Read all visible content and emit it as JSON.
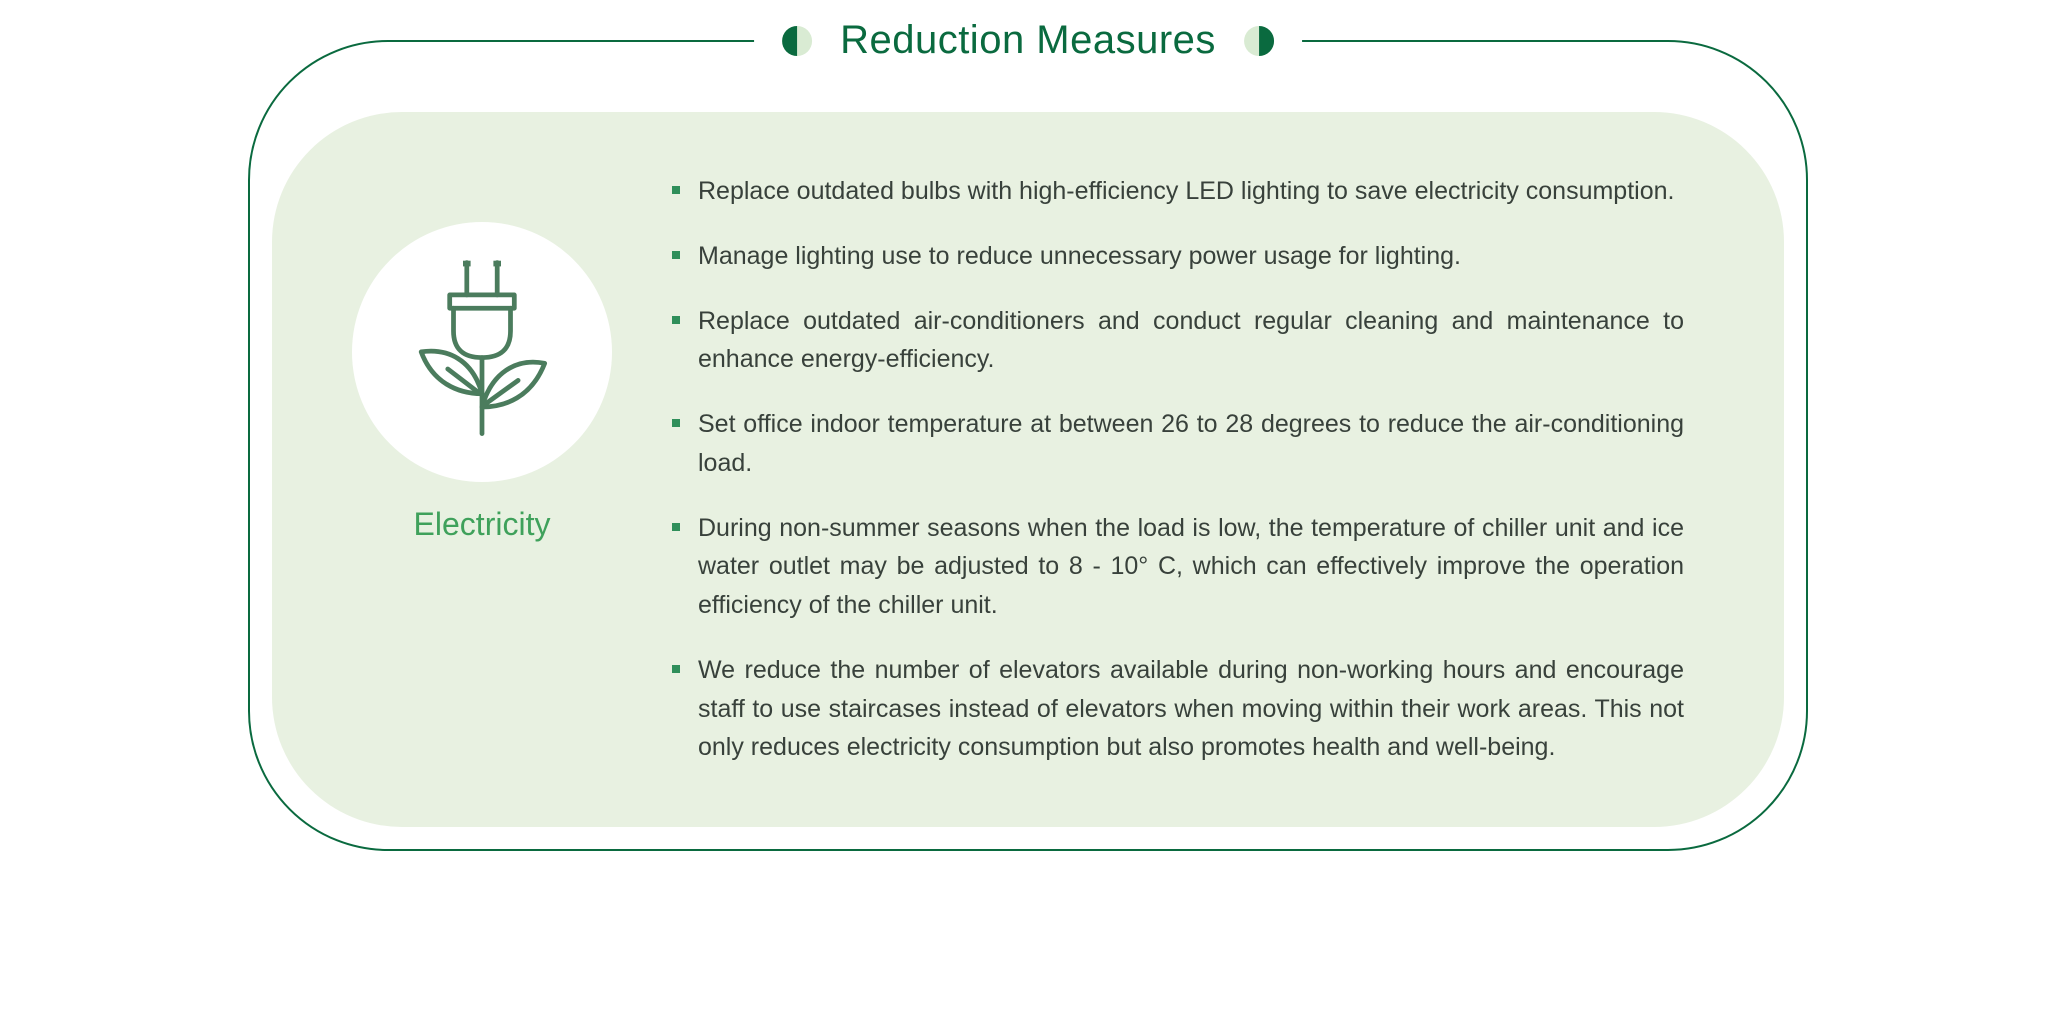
{
  "colors": {
    "border": "#0a6a3f",
    "title": "#0a6a3f",
    "panel_bg": "#e8f1e1",
    "body_text": "#38413b",
    "icon_stroke": "#4b7c5d",
    "icon_label": "#3fa15b",
    "bullet_marker": "#2f8f5a",
    "decor_light": "#d9ebd3",
    "decor_dark": "#0a6a3f"
  },
  "title": "Reduction Measures",
  "icon": {
    "name": "electricity-plant-plug",
    "label": "Electricity"
  },
  "bullets": [
    "Replace outdated bulbs with high-efficiency LED lighting to save electricity consumption.",
    "Manage lighting use to reduce unnecessary power usage for lighting.",
    "Replace outdated air-conditioners and conduct regular cleaning and maintenance to enhance energy-efficiency.",
    "Set office indoor temperature at between 26 to 28 degrees to reduce the air-conditioning load.",
    "During non-summer seasons when the load is low, the temperature of chiller unit and ice water outlet may be adjusted to 8 - 10° C, which can effectively improve the operation efficiency of the chiller unit.",
    "We reduce the number of elevators available during non-working hours and encourage staff to use staircases instead of elevators when moving within their work areas. This not only reduces electricity consumption but also promotes health and well-being."
  ],
  "typography": {
    "title_fontsize": 40,
    "body_fontsize": 25,
    "label_fontsize": 32
  }
}
